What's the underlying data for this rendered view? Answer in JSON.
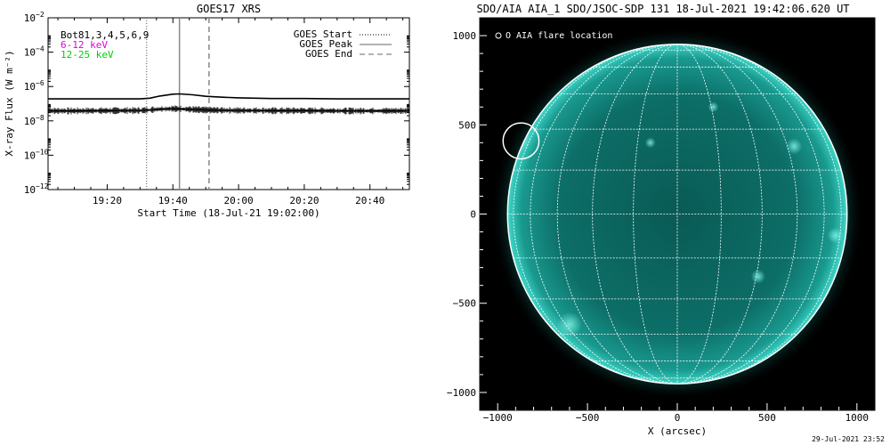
{
  "footer_timestamp": "29-Jul-2021 23:52",
  "colors": {
    "low_channel": "#000000",
    "mid_channel": "#e000e0",
    "high_channel": "#00d000",
    "disk": "#0e7a72",
    "disk_edge": "#3fd6c8",
    "background": "#000000",
    "grid": "#ffffff"
  },
  "chart_data": [
    {
      "type": "line",
      "title": "GOES17 XRS",
      "xlabel": "Start Time (18-Jul-21 19:02:00)",
      "ylabel": "X-ray Flux (W m⁻²)",
      "y_scale": "log",
      "ylim": [
        1e-12,
        0.01
      ],
      "x_range": [
        "19:02",
        "20:52"
      ],
      "x_tick_labels": [
        "19:20",
        "19:40",
        "20:00",
        "20:20",
        "20:40"
      ],
      "y_tick_exponents": [
        -12,
        -10,
        -8,
        -6,
        -4,
        -2
      ],
      "legend_position": "top-right",
      "channel_legend": [
        "Bot81,3,4,5,6,9",
        "6-12 keV",
        "12-25 keV"
      ],
      "event_legend": [
        "GOES Start",
        "GOES Peak",
        "GOES End"
      ],
      "events": {
        "start": "19:32",
        "peak": "19:42",
        "end": "19:51"
      },
      "series": [
        {
          "x": [
            "19:02",
            "19:10",
            "19:20",
            "19:30",
            "19:33",
            "19:36",
            "19:40",
            "19:42",
            "19:46",
            "19:50",
            "19:55",
            "20:00",
            "20:10",
            "20:20",
            "20:30",
            "20:40",
            "20:52"
          ],
          "values": [
            1.9e-07,
            1.9e-07,
            1.9e-07,
            1.9e-07,
            2.1e-07,
            2.8e-07,
            3.6e-07,
            3.7e-07,
            3.3e-07,
            2.7e-07,
            2.4e-07,
            2.2e-07,
            2e-07,
            2e-07,
            1.9e-07,
            1.9e-07,
            1.9e-07
          ]
        },
        {
          "x": [
            "19:02",
            "19:10",
            "19:20",
            "19:30",
            "19:33",
            "19:36",
            "19:40",
            "19:42",
            "19:46",
            "19:50",
            "19:55",
            "20:00",
            "20:10",
            "20:20",
            "20:30",
            "20:40",
            "20:52"
          ],
          "values": [
            3.8e-08,
            3.8e-08,
            3.9e-08,
            4e-08,
            4.3e-08,
            4.8e-08,
            5.1e-08,
            5e-08,
            4.6e-08,
            4.3e-08,
            4.1e-08,
            4e-08,
            3.9e-08,
            3.9e-08,
            3.8e-08,
            3.8e-08,
            3.8e-08
          ]
        }
      ]
    },
    {
      "type": "heatmap",
      "title": "SDO/AIA AIA_1 SDO/JSOC-SDP 131 18-Jul-2021 19:42:06.620 UT",
      "xlabel": "X (arcsec)",
      "ylabel": "",
      "xlim": [
        -1100,
        1100
      ],
      "ylim": [
        -1100,
        1100
      ],
      "x_ticks": [
        -1000,
        -500,
        0,
        500,
        1000
      ],
      "y_ticks": [
        -1000,
        -500,
        0,
        500,
        1000
      ],
      "solar_radius_arcsec": 945,
      "grid": true,
      "legend": "O AIA flare location",
      "flare_location": {
        "x": -870,
        "y": 410,
        "radius": 100
      }
    }
  ]
}
